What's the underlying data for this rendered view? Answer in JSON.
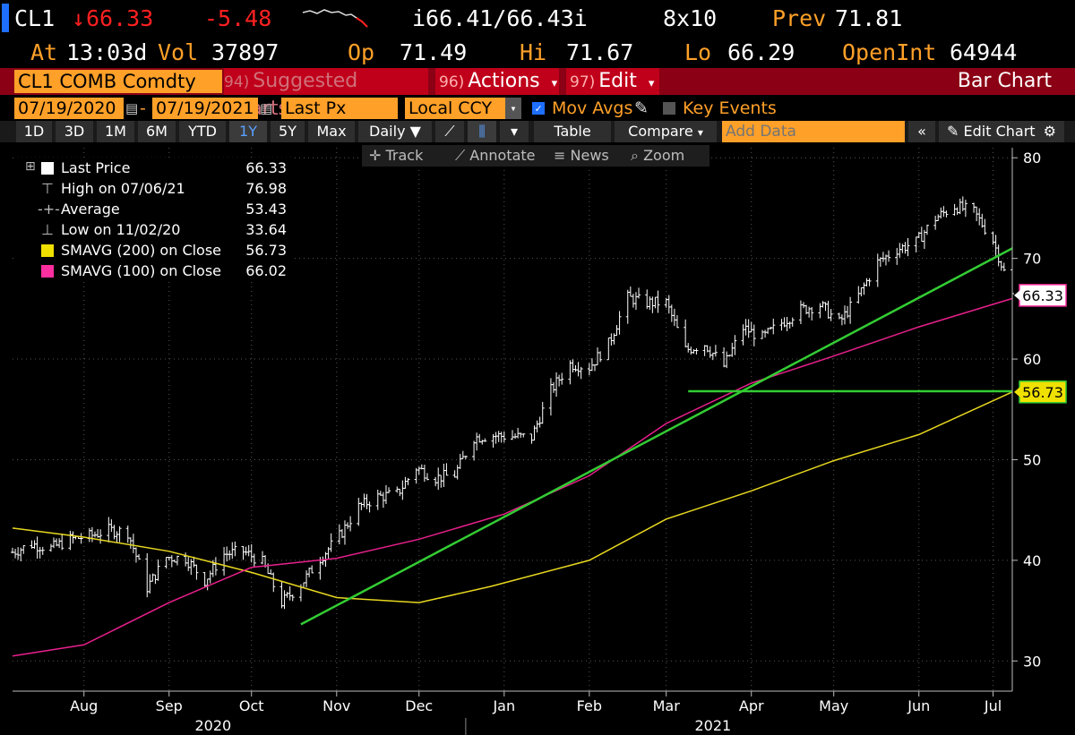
{
  "header": {
    "ticker": "CL1",
    "arrow": "↓",
    "last": "66.33",
    "change": "-5.48",
    "bid_ask": "i66.41/66.43i",
    "size": "8x10",
    "prev_label": "Prev",
    "prev_value": "71.81",
    "at_label": "At",
    "at_value": "13:03d",
    "vol_label": "Vol",
    "vol_value": "37897",
    "op_label": "Op",
    "op_value": "71.49",
    "hi_label": "Hi",
    "hi_value": "71.67",
    "lo_label": "Lo",
    "lo_value": "66.29",
    "oi_label": "OpenInt",
    "oi_value": "64944"
  },
  "command_bar": {
    "security": "CL1 COMB Comdty",
    "suggested_num": "94)",
    "suggested": "Suggested Charts",
    "actions_num": "96)",
    "actions": "Actions",
    "edit_num": "97)",
    "edit": "Edit",
    "title": "Bar Chart"
  },
  "settings_bar": {
    "start_date": "07/19/2020",
    "end_date": "07/19/2021",
    "field": "Last Px",
    "currency": "Local CCY",
    "mov_avgs": "Mov Avgs",
    "key_events": "Key Events"
  },
  "period_bar": {
    "periods": [
      "1D",
      "3D",
      "1M",
      "6M",
      "YTD",
      "1Y",
      "5Y",
      "Max"
    ],
    "selected": "1Y",
    "frequency": "Daily",
    "table": "Table",
    "compare": "Compare",
    "add_data_placeholder": "Add Data",
    "edit_chart": "Edit Chart"
  },
  "tool_bar": {
    "track": "Track",
    "annotate": "Annotate",
    "news": "News",
    "zoom": "Zoom"
  },
  "legend": [
    {
      "label": "Last Price",
      "value": "66.33",
      "color": "#ffffff"
    },
    {
      "label": "High on 07/06/21",
      "value": "76.98",
      "color": ""
    },
    {
      "label": "Average",
      "value": "53.43",
      "color": ""
    },
    {
      "label": "Low on 11/02/20",
      "value": "33.64",
      "color": ""
    },
    {
      "label": "SMAVG (200)  on Close",
      "value": "56.73",
      "color": "#f0e000"
    },
    {
      "label": "SMAVG (100)  on Close",
      "value": "66.02",
      "color": "#ff2fa0"
    }
  ],
  "colors": {
    "background": "#000000",
    "price_bars": "#ffffff",
    "sma200": "#e8d820",
    "sma100": "#e8208c",
    "trendline": "#33cc33",
    "orange": "#ffa028",
    "red_bar": "#8b0014"
  },
  "chart_data": {
    "type": "bar",
    "title": "",
    "xlabel": "",
    "ylabel": "",
    "ylim": [
      27,
      81
    ],
    "yticks": [
      30,
      40,
      50,
      60,
      70,
      80
    ],
    "x_start": "2020-07-20",
    "x_end": "2021-07-19",
    "month_ticks": [
      {
        "label": "Aug",
        "date": "2020-08-15"
      },
      {
        "label": "Sep",
        "date": "2020-09-15"
      },
      {
        "label": "Oct",
        "date": "2020-10-15"
      },
      {
        "label": "Nov",
        "date": "2020-11-15"
      },
      {
        "label": "Dec",
        "date": "2020-12-15"
      },
      {
        "label": "Jan",
        "date": "2021-01-15"
      },
      {
        "label": "Feb",
        "date": "2021-02-15"
      },
      {
        "label": "Mar",
        "date": "2021-03-15"
      },
      {
        "label": "Apr",
        "date": "2021-04-15"
      },
      {
        "label": "May",
        "date": "2021-05-15"
      },
      {
        "label": "Jun",
        "date": "2021-06-15"
      },
      {
        "label": "Jul",
        "date": "2021-07-12"
      }
    ],
    "year_labels": [
      {
        "label": "2020",
        "date": "2020-10-01"
      },
      {
        "label": "2021",
        "date": "2021-04-01"
      }
    ],
    "year_divider": "2021-01-01",
    "series": [
      {
        "name": "Last Price",
        "style": "ohlc",
        "points": [
          [
            "2020-07-20",
            40.8
          ],
          [
            "2020-07-27",
            41.6
          ],
          [
            "2020-08-03",
            41.2
          ],
          [
            "2020-08-10",
            42.1
          ],
          [
            "2020-08-17",
            42.4
          ],
          [
            "2020-08-24",
            43.0
          ],
          [
            "2020-08-31",
            42.8
          ],
          [
            "2020-09-07",
            37.3
          ],
          [
            "2020-09-14",
            40.3
          ],
          [
            "2020-09-21",
            40.2
          ],
          [
            "2020-09-28",
            38.0
          ],
          [
            "2020-10-05",
            40.6
          ],
          [
            "2020-10-12",
            40.9
          ],
          [
            "2020-10-19",
            39.8
          ],
          [
            "2020-10-26",
            35.8
          ],
          [
            "2020-11-02",
            37.6
          ],
          [
            "2020-11-09",
            40.2
          ],
          [
            "2020-11-16",
            42.4
          ],
          [
            "2020-11-23",
            45.3
          ],
          [
            "2020-11-30",
            46.3
          ],
          [
            "2020-12-07",
            46.6
          ],
          [
            "2020-12-14",
            49.2
          ],
          [
            "2020-12-21",
            48.2
          ],
          [
            "2020-12-28",
            48.5
          ],
          [
            "2021-01-04",
            52.2
          ],
          [
            "2021-01-11",
            52.4
          ],
          [
            "2021-01-18",
            52.3
          ],
          [
            "2021-01-25",
            52.2
          ],
          [
            "2021-02-01",
            56.9
          ],
          [
            "2021-02-08",
            59.5
          ],
          [
            "2021-02-15",
            59.2
          ],
          [
            "2021-02-22",
            61.5
          ],
          [
            "2021-03-01",
            66.1
          ],
          [
            "2021-03-08",
            65.6
          ],
          [
            "2021-03-15",
            65.6
          ],
          [
            "2021-03-22",
            60.9
          ],
          [
            "2021-03-29",
            61.5
          ],
          [
            "2021-04-05",
            59.3
          ],
          [
            "2021-04-12",
            63.1
          ],
          [
            "2021-04-19",
            62.1
          ],
          [
            "2021-04-26",
            63.6
          ],
          [
            "2021-05-03",
            64.9
          ],
          [
            "2021-05-10",
            65.4
          ],
          [
            "2021-05-17",
            63.6
          ],
          [
            "2021-05-24",
            66.3
          ],
          [
            "2021-05-31",
            69.6
          ],
          [
            "2021-06-07",
            70.9
          ],
          [
            "2021-06-14",
            71.6
          ],
          [
            "2021-06-21",
            74.0
          ],
          [
            "2021-06-28",
            75.2
          ],
          [
            "2021-07-05",
            74.6
          ],
          [
            "2021-07-12",
            71.8
          ],
          [
            "2021-07-19",
            66.33
          ]
        ]
      },
      {
        "name": "SMAVG (200)  on Close",
        "style": "line",
        "points": [
          [
            "2020-07-20",
            43.2
          ],
          [
            "2020-08-15",
            42.3
          ],
          [
            "2020-09-15",
            40.9
          ],
          [
            "2020-10-15",
            38.8
          ],
          [
            "2020-11-15",
            36.3
          ],
          [
            "2020-12-15",
            35.8
          ],
          [
            "2021-01-10",
            37.4
          ],
          [
            "2021-02-15",
            40.0
          ],
          [
            "2021-03-15",
            44.1
          ],
          [
            "2021-04-15",
            46.9
          ],
          [
            "2021-05-15",
            49.9
          ],
          [
            "2021-06-15",
            52.5
          ],
          [
            "2021-07-19",
            56.73
          ]
        ]
      },
      {
        "name": "SMAVG (100)  on Close",
        "style": "line",
        "points": [
          [
            "2020-07-20",
            30.5
          ],
          [
            "2020-08-15",
            31.6
          ],
          [
            "2020-09-15",
            35.8
          ],
          [
            "2020-10-15",
            39.3
          ],
          [
            "2020-11-15",
            40.2
          ],
          [
            "2020-12-15",
            42.1
          ],
          [
            "2021-01-15",
            44.6
          ],
          [
            "2021-02-15",
            48.4
          ],
          [
            "2021-03-15",
            53.6
          ],
          [
            "2021-04-15",
            57.6
          ],
          [
            "2021-05-15",
            60.3
          ],
          [
            "2021-06-15",
            63.2
          ],
          [
            "2021-07-19",
            66.02
          ]
        ]
      },
      {
        "name": "Trend line",
        "style": "trendline",
        "points": [
          [
            "2020-11-02",
            33.64
          ],
          [
            "2021-07-19",
            71.0
          ]
        ]
      },
      {
        "name": "Support line",
        "style": "hline",
        "points": [
          [
            "2021-03-23",
            56.8
          ],
          [
            "2021-07-19",
            56.8
          ]
        ]
      }
    ],
    "price_tags": [
      {
        "value": "66.33",
        "y": 66.33,
        "bg": "#ffffff",
        "fg": "#000000",
        "border": "#ff2fa0"
      },
      {
        "value": "56.73",
        "y": 56.73,
        "bg": "#f0e000",
        "fg": "#000000",
        "border": "#33cc33"
      }
    ]
  }
}
